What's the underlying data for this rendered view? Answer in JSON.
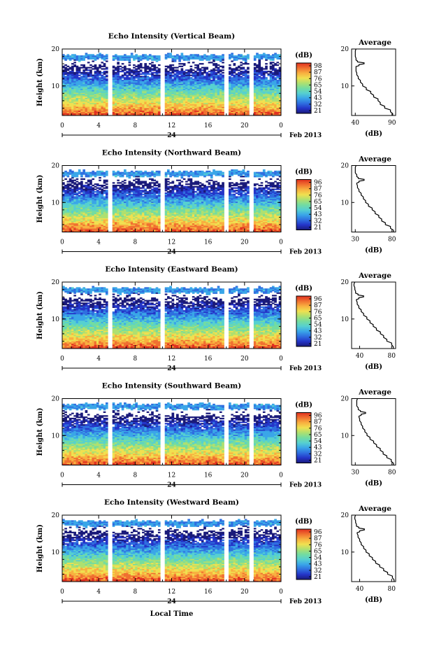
{
  "chart_data": [
    {
      "type": "heatmap",
      "title": "Echo Intensity (Vertical Beam)",
      "ylabel": "Height (km)",
      "x_ticks": [
        "0",
        "4",
        "8",
        "12",
        "16",
        "20",
        "0"
      ],
      "y_ticks": [
        "20",
        "10"
      ],
      "xlim": [
        0,
        24
      ],
      "ylim": [
        2,
        20
      ],
      "date_mark": "24",
      "month_label": "Feb 2013",
      "colorbar": {
        "label": "(dB)",
        "ticks": [
          "98",
          "87",
          "76",
          "65",
          "54",
          "43",
          "32",
          "21"
        ]
      },
      "gaps_hours": [
        5.2,
        11.0,
        18.0,
        20.8
      ],
      "cloud_top_km": [
        17.5,
        15.8
      ],
      "average_profile": {
        "title": "Average",
        "xlabel": "(dB)",
        "x_ticks": [
          "40",
          "90"
        ],
        "xlim": [
          35,
          95
        ],
        "y_ticks": [
          "20",
          "10"
        ],
        "ylim": [
          2,
          20
        ],
        "height_km": [
          2,
          3,
          4,
          5,
          6,
          7,
          8,
          9,
          10,
          11,
          12,
          13,
          14,
          15,
          15.5,
          16,
          16.5,
          17,
          18,
          19,
          20
        ],
        "db": [
          91,
          88,
          80,
          74,
          71,
          65,
          61,
          55,
          50,
          47,
          44,
          42,
          41,
          41,
          45,
          52,
          43,
          41,
          40,
          40,
          41
        ]
      }
    },
    {
      "type": "heatmap",
      "title": "Echo Intensity (Northward Beam)",
      "ylabel": "Height (km)",
      "x_ticks": [
        "0",
        "4",
        "8",
        "12",
        "16",
        "20",
        "0"
      ],
      "y_ticks": [
        "20",
        "10"
      ],
      "xlim": [
        0,
        24
      ],
      "ylim": [
        2,
        20
      ],
      "date_mark": "24",
      "month_label": "Feb 2013",
      "colorbar": {
        "label": "(dB)",
        "ticks": [
          "96",
          "87",
          "76",
          "65",
          "54",
          "43",
          "32",
          "21"
        ]
      },
      "gaps_hours": [
        5.2,
        11.0,
        18.0,
        20.8
      ],
      "cloud_top_km": [
        17.5,
        15.8
      ],
      "average_profile": {
        "title": "Average",
        "xlabel": "(dB)",
        "x_ticks": [
          "30",
          "80"
        ],
        "xlim": [
          25,
          85
        ],
        "y_ticks": [
          "20",
          "10"
        ],
        "ylim": [
          2,
          20
        ],
        "height_km": [
          2,
          3,
          4,
          5,
          6,
          7,
          8,
          9,
          10,
          11,
          12,
          13,
          14,
          15,
          15.5,
          16,
          16.5,
          17,
          18,
          19,
          20
        ],
        "db": [
          82,
          78,
          71,
          66,
          62,
          57,
          53,
          48,
          44,
          41,
          38,
          35,
          33,
          32,
          35,
          42,
          34,
          32,
          30,
          30,
          31
        ]
      }
    },
    {
      "type": "heatmap",
      "title": "Echo Intensity (Eastward Beam)",
      "ylabel": "Height (km)",
      "x_ticks": [
        "0",
        "4",
        "8",
        "12",
        "16",
        "20",
        "0"
      ],
      "y_ticks": [
        "20",
        "10"
      ],
      "xlim": [
        0,
        24
      ],
      "ylim": [
        2,
        20
      ],
      "date_mark": "24",
      "month_label": "Feb 2013",
      "colorbar": {
        "label": "(dB)",
        "ticks": [
          "96",
          "87",
          "76",
          "65",
          "54",
          "43",
          "32",
          "21"
        ]
      },
      "gaps_hours": [
        5.2,
        11.0,
        18.0,
        20.8
      ],
      "cloud_top_km": [
        17.5,
        15.8
      ],
      "average_profile": {
        "title": "Average",
        "xlabel": "(dB)",
        "x_ticks": [
          "40",
          "80"
        ],
        "xlim": [
          30,
          85
        ],
        "y_ticks": [
          "20",
          "10"
        ],
        "ylim": [
          2,
          20
        ],
        "height_km": [
          2,
          3,
          4,
          5,
          6,
          7,
          8,
          9,
          10,
          11,
          12,
          13,
          14,
          15,
          15.5,
          16,
          16.5,
          17,
          18,
          19,
          20
        ],
        "db": [
          82,
          80,
          74,
          70,
          66,
          61,
          57,
          53,
          49,
          45,
          42,
          39,
          37,
          36,
          39,
          45,
          38,
          35,
          34,
          33,
          34
        ]
      }
    },
    {
      "type": "heatmap",
      "title": "Echo Intensity (Southward Beam)",
      "ylabel": "Height (km)",
      "x_ticks": [
        "0",
        "4",
        "8",
        "12",
        "16",
        "20",
        "0"
      ],
      "y_ticks": [
        "20",
        "10"
      ],
      "xlim": [
        0,
        24
      ],
      "ylim": [
        2,
        20
      ],
      "date_mark": "24",
      "month_label": "Feb 2013",
      "colorbar": {
        "label": "(dB)",
        "ticks": [
          "96",
          "87",
          "76",
          "65",
          "54",
          "43",
          "32",
          "21"
        ]
      },
      "gaps_hours": [
        5.2,
        11.0,
        18.0,
        20.8
      ],
      "cloud_top_km": [
        17.5,
        15.8
      ],
      "average_profile": {
        "title": "Average",
        "xlabel": "(dB)",
        "x_ticks": [
          "30",
          "80"
        ],
        "xlim": [
          25,
          85
        ],
        "y_ticks": [
          "20",
          "10"
        ],
        "ylim": [
          2,
          20
        ],
        "height_km": [
          2,
          3,
          4,
          5,
          6,
          7,
          8,
          9,
          10,
          11,
          12,
          13,
          14,
          15,
          15.5,
          16,
          16.5,
          17,
          18,
          19,
          20
        ],
        "db": [
          82,
          79,
          73,
          68,
          64,
          59,
          55,
          50,
          46,
          43,
          40,
          38,
          36,
          35,
          38,
          44,
          37,
          34,
          32,
          32,
          33
        ]
      }
    },
    {
      "type": "heatmap",
      "title": "Echo Intensity (Westward Beam)",
      "ylabel": "Height (km)",
      "xlabel": "Local Time",
      "x_ticks": [
        "0",
        "4",
        "8",
        "12",
        "16",
        "20",
        "0"
      ],
      "y_ticks": [
        "20",
        "10"
      ],
      "xlim": [
        0,
        24
      ],
      "ylim": [
        2,
        20
      ],
      "date_mark": "24",
      "month_label": "Feb 2013",
      "colorbar": {
        "label": "(dB)",
        "ticks": [
          "96",
          "87",
          "76",
          "65",
          "54",
          "43",
          "32",
          "21"
        ]
      },
      "gaps_hours": [
        5.2,
        11.0,
        18.0,
        20.8
      ],
      "cloud_top_km": [
        17.5,
        15.8
      ],
      "average_profile": {
        "title": "Average",
        "xlabel": "(dB)",
        "x_ticks": [
          "40",
          "80"
        ],
        "xlim": [
          30,
          85
        ],
        "y_ticks": [
          "20",
          "10"
        ],
        "ylim": [
          2,
          20
        ],
        "height_km": [
          2,
          3,
          4,
          5,
          6,
          7,
          8,
          9,
          10,
          11,
          12,
          13,
          14,
          15,
          15.5,
          16,
          16.5,
          17,
          18,
          19,
          20
        ],
        "db": [
          83,
          81,
          75,
          70,
          65,
          60,
          56,
          52,
          48,
          45,
          42,
          40,
          38,
          37,
          40,
          46,
          39,
          36,
          35,
          34,
          35
        ]
      }
    }
  ],
  "colors": {
    "colormap": [
      "#1a1a7a",
      "#2435c8",
      "#2f6fe0",
      "#3aa6e8",
      "#56d0d0",
      "#74dca0",
      "#aee070",
      "#f0e050",
      "#f8b040",
      "#f07030",
      "#e03020"
    ]
  }
}
